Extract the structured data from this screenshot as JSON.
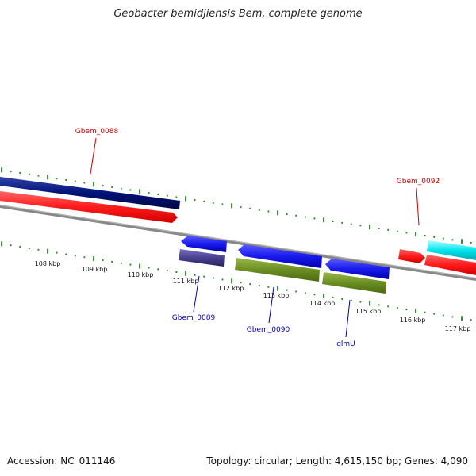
{
  "title": "Geobacter bemidjiensis Bem, complete genome",
  "footer": {
    "accession": "Accession: NC_011146",
    "topology": "Topology: circular; Length: 4,615,150 bp; Genes: 4,090"
  },
  "ticks": [
    {
      "label": "108 kbp"
    },
    {
      "label": "109 kbp"
    },
    {
      "label": "110 kbp"
    },
    {
      "label": "111 kbp"
    },
    {
      "label": "112 kbp"
    },
    {
      "label": "113 kbp"
    },
    {
      "label": "114 kbp"
    },
    {
      "label": "115 kbp"
    },
    {
      "label": "116 kbp"
    },
    {
      "label": "117 kbp"
    }
  ],
  "gene_labels": [
    {
      "name": "Gbem_0088",
      "color": "#cc0000"
    },
    {
      "name": "Gbem_0092",
      "color": "#cc0000"
    },
    {
      "name": "Gbem_0089",
      "color": "#0000aa"
    },
    {
      "name": "Gbem_0090",
      "color": "#0000aa"
    },
    {
      "name": "glmU",
      "color": "#0000aa"
    }
  ],
  "colors": {
    "forward_cds": "#ff1a1a",
    "reverse_cds": "#1a1aee",
    "forward_gene_alt": "#001177",
    "reverse_gene_alt": "#4a4090",
    "olive_gene": "#6b8e23",
    "cyan_gene": "#00e5ee",
    "backbone": "#888888",
    "tick": "#1a8a1a"
  }
}
